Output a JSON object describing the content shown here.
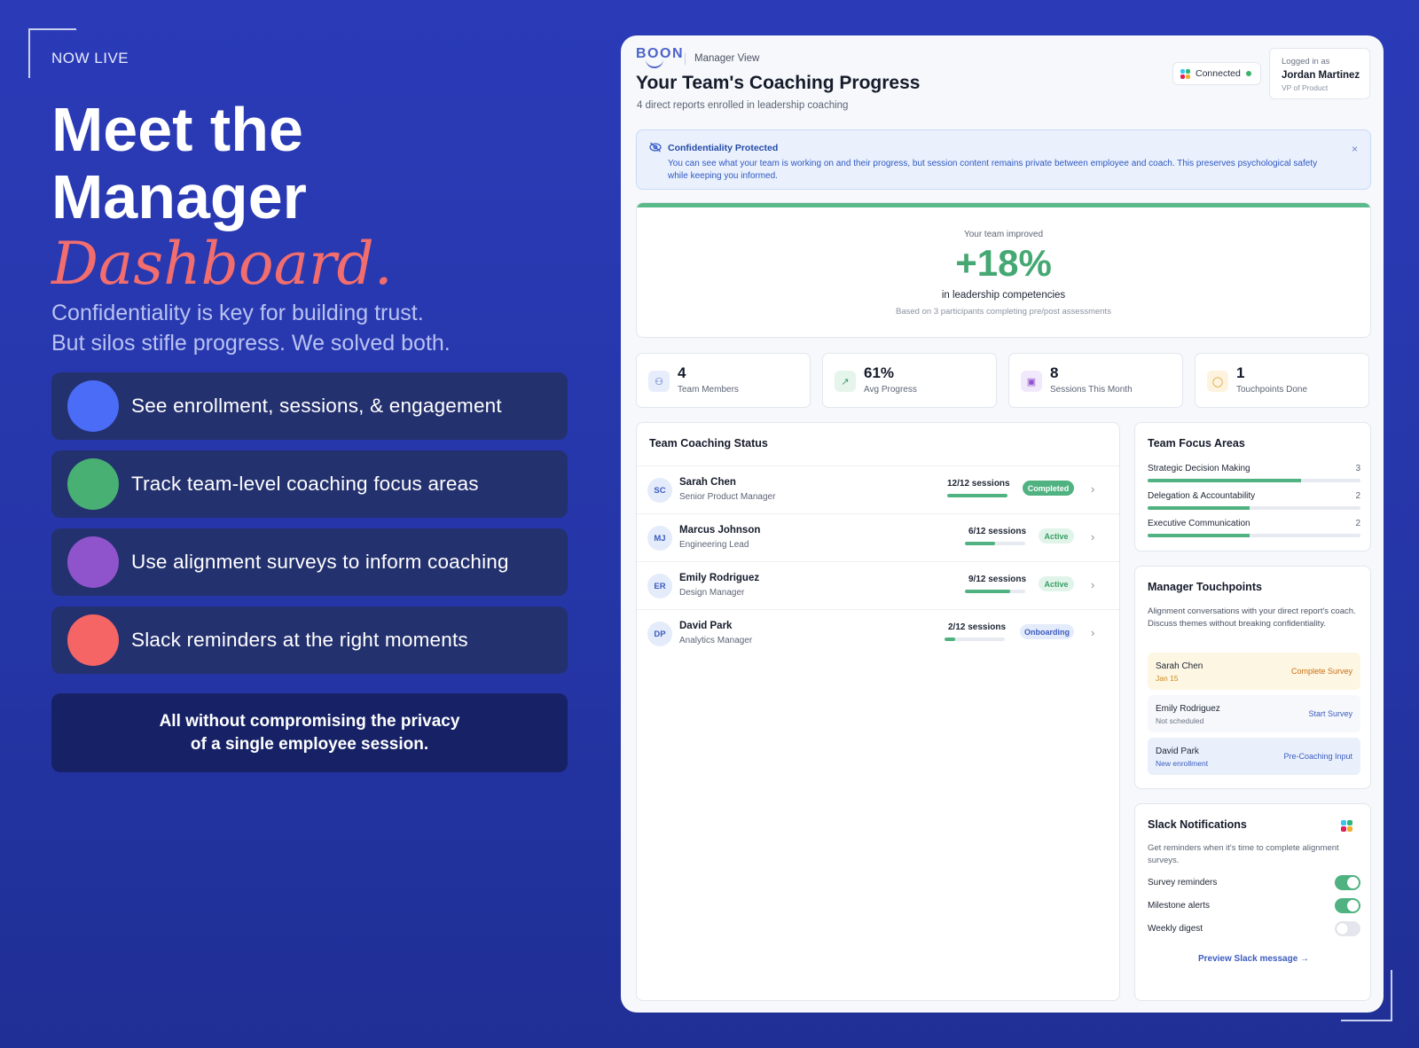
{
  "hero": {
    "kicker": "NOW LIVE",
    "title_line1": "Meet the",
    "title_line2": "Manager",
    "title_script": "Dashboard.",
    "sub_line1": "Confidentiality is key for building trust.",
    "sub_line2": "But silos stifle progress. We solved both.",
    "features": [
      {
        "label": "See enrollment, sessions, & engagement",
        "color": "#4a6cf7"
      },
      {
        "label": "Track team-level coaching focus areas",
        "color": "#48b072"
      },
      {
        "label": "Use alignment surveys to inform coaching",
        "color": "#8f54cc"
      },
      {
        "label": "Slack reminders at the right moments",
        "color": "#f56565"
      }
    ],
    "privacy_line1": "All without compromising the privacy",
    "privacy_line2": "of a single employee session."
  },
  "dashboard": {
    "logo": "BOON",
    "view": "Manager View",
    "title": "Your Team's Coaching Progress",
    "subtitle": "4 direct reports enrolled in leadership coaching",
    "connected": "Connected",
    "logged_in_label": "Logged in as",
    "user_name": "Jordan Martinez",
    "user_role": "VP of Product",
    "confidentiality": {
      "title": "Confidentiality Protected",
      "body": "You can see what your team is working on and their progress, but session content remains private between employee and coach. This preserves psychological safety while keeping you informed.",
      "close": "×"
    },
    "improvement": {
      "label": "Your team improved",
      "value": "+18%",
      "caption": "in leadership competencies",
      "note": "Based on 3 participants completing pre/post assessments",
      "accent": "#45a873"
    },
    "stats": [
      {
        "value": "4",
        "label": "Team Members",
        "icon": "users-icon",
        "glyph": "⚇",
        "bg": "#e7edfb",
        "fg": "#3c5cc0"
      },
      {
        "value": "61%",
        "label": "Avg Progress",
        "icon": "trend-up-icon",
        "glyph": "↗",
        "bg": "#e5f5ec",
        "fg": "#3a9e66"
      },
      {
        "value": "8",
        "label": "Sessions This Month",
        "icon": "calendar-icon",
        "glyph": "▣",
        "bg": "#f1e9fb",
        "fg": "#8f54cc"
      },
      {
        "value": "1",
        "label": "Touchpoints Done",
        "icon": "chat-bubble-icon",
        "glyph": "◯",
        "bg": "#fdf3df",
        "fg": "#d99a1e"
      }
    ],
    "team_status": {
      "title": "Team Coaching Status",
      "members": [
        {
          "initials": "SC",
          "name": "Sarah Chen",
          "role": "Senior Product Manager",
          "sessions": "12/12 sessions",
          "progress": 1.0,
          "status": "Completed",
          "status_bg": "#4fb280",
          "status_fg": "#ffffff"
        },
        {
          "initials": "MJ",
          "name": "Marcus Johnson",
          "role": "Engineering Lead",
          "sessions": "6/12 sessions",
          "progress": 0.5,
          "status": "Active",
          "status_bg": "#e1f4e9",
          "status_fg": "#3a9e66"
        },
        {
          "initials": "ER",
          "name": "Emily Rodriguez",
          "role": "Design Manager",
          "sessions": "9/12 sessions",
          "progress": 0.75,
          "status": "Active",
          "status_bg": "#e1f4e9",
          "status_fg": "#3a9e66"
        },
        {
          "initials": "DP",
          "name": "David Park",
          "role": "Analytics Manager",
          "sessions": "2/12 sessions",
          "progress": 0.17,
          "status": "Onboarding",
          "status_bg": "#e4ebfa",
          "status_fg": "#3c5cc0"
        }
      ]
    },
    "focus_areas": {
      "title": "Team Focus Areas",
      "items": [
        {
          "label": "Strategic Decision Making",
          "count": "3",
          "fill": 0.72
        },
        {
          "label": "Delegation & Accountability",
          "count": "2",
          "fill": 0.48
        },
        {
          "label": "Executive Communication",
          "count": "2",
          "fill": 0.48
        }
      ]
    },
    "touchpoints": {
      "title": "Manager Touchpoints",
      "description": "Alignment conversations with your direct report's coach. Discuss themes without breaking confidentiality.",
      "items": [
        {
          "name": "Sarah Chen",
          "sub": "Jan 15",
          "action": "Complete Survey",
          "bg": "#fdf6e3",
          "sub_color": "#c98a1a",
          "action_color": "#c96f12"
        },
        {
          "name": "Emily Rodriguez",
          "sub": "Not scheduled",
          "action": "Start Survey",
          "bg": "#f6f8fb",
          "sub_color": "#6b7384",
          "action_color": "#3c5cc0"
        },
        {
          "name": "David Park",
          "sub": "New enrollment",
          "action": "Pre-Coaching Input",
          "bg": "#e9f0fc",
          "sub_color": "#3c5cc0",
          "action_color": "#3c5cc0"
        }
      ]
    },
    "slack": {
      "title": "Slack Notifications",
      "description": "Get reminders when it's time to complete alignment surveys.",
      "toggles": [
        {
          "label": "Survey reminders",
          "on": true
        },
        {
          "label": "Milestone alerts",
          "on": true
        },
        {
          "label": "Weekly digest",
          "on": false
        }
      ],
      "preview": "Preview Slack message →"
    }
  }
}
